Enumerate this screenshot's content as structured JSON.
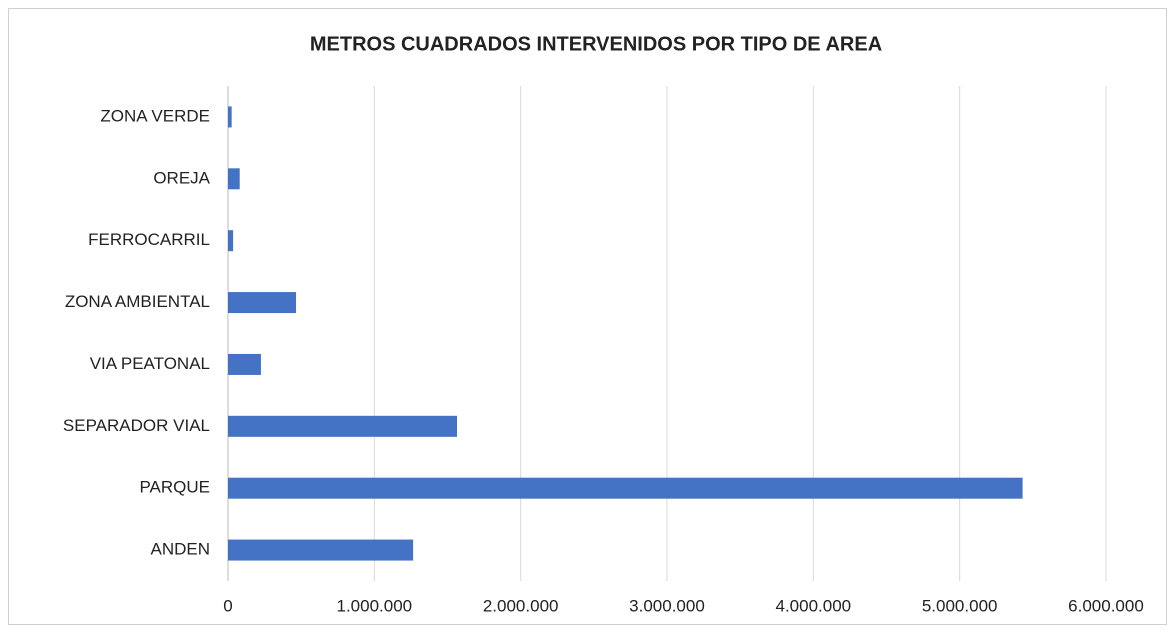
{
  "chart_data": {
    "type": "bar",
    "orientation": "horizontal",
    "title": "METROS CUADRADOS INTERVENIDOS POR TIPO DE AREA",
    "categories": [
      "ANDEN",
      "PARQUE",
      "SEPARADOR VIAL",
      "VIA PEATONAL",
      "ZONA AMBIENTAL",
      "FERROCARRIL",
      "OREJA",
      "ZONA VERDE"
    ],
    "values": [
      1265000,
      5430000,
      1565000,
      225000,
      465000,
      35000,
      80000,
      25000
    ],
    "color": "#4472c4",
    "xlim": [
      0,
      6000000
    ],
    "xticks": [
      0,
      {
        "value": 1000000,
        "label": "1.000.000"
      },
      {
        "value": 2000000,
        "label": "2.000.000"
      },
      {
        "value": 3000000,
        "label": "3.000.000"
      },
      {
        "value": 4000000,
        "label": "4.000.000"
      },
      {
        "value": 5000000,
        "label": "5.000.000"
      },
      {
        "value": 6000000,
        "label": "6.000.000"
      }
    ],
    "grid": true
  }
}
